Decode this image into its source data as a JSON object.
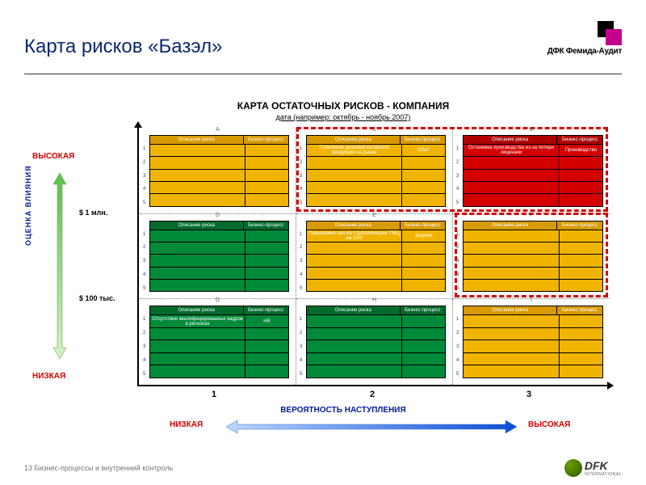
{
  "title": "Карта рисков «Базэл»",
  "logo_brand": "ДФК Фемида-Аудит",
  "chart_title": "КАРТА ОСТАТОЧНЫХ РИСКОВ - КОМПАНИЯ",
  "chart_subtitle": "дата (например: октябрь - ноябрь 2007)",
  "footer": "13 Бизнес-процессы и внутренний контроль",
  "dfk_text": "DFK",
  "dfk_sub": "INTERNATIONAL",
  "y_axis": {
    "label": "ОЦЕНКА ВЛИЯНИЯ",
    "high": "ВЫСОКАЯ",
    "low": "НИЗКАЯ",
    "tick1": "$ 1 млн.",
    "tick2": "$ 100 тыс."
  },
  "x_axis": {
    "label": "ВЕРОЯТНОСТЬ НАСТУПЛЕНИЯ",
    "low": "НИЗКАЯ",
    "high": "ВЫСОКАЯ",
    "n1": "1",
    "n2": "2",
    "n3": "3"
  },
  "card_head1": "Описание риска",
  "card_head2": "Бизнес-процесс",
  "row_nums": [
    "1",
    "2",
    "3",
    "4",
    "5"
  ],
  "colors": {
    "green": "#008a3a",
    "green_dark": "#006b2d",
    "yellow": "#f0b400",
    "yellow_dark": "#d89a00",
    "red": "#d40000",
    "red_dark": "#b00000"
  },
  "cells": [
    {
      "id": "A",
      "color": "yellow",
      "rows": [
        null,
        null,
        null,
        null,
        null
      ]
    },
    {
      "id": "B",
      "color": "yellow",
      "rows": [
        {
          "desc": "Появление дешевой китайской продукции на рынке",
          "bp": "Сбыт"
        },
        null,
        null,
        null,
        null
      ]
    },
    {
      "id": "C",
      "color": "red",
      "rows": [
        {
          "desc": "Остановка производства из-за потери лицензии",
          "bp": "Производство"
        },
        null,
        null,
        null,
        null
      ]
    },
    {
      "id": "D",
      "color": "green",
      "rows": [
        null,
        null,
        null,
        null,
        null
      ]
    },
    {
      "id": "E",
      "color": "yellow",
      "rows": [
        {
          "desc": "Повышение цен на стратегические ТМЦ на 10%",
          "bp": "Закупки"
        },
        null,
        null,
        null,
        null
      ]
    },
    {
      "id": "F",
      "color": "yellow",
      "rows": [
        null,
        null,
        null,
        null,
        null
      ]
    },
    {
      "id": "G",
      "color": "green",
      "rows": [
        {
          "desc": "Отсутствие квалифицированных кадров в регионах",
          "bp": "HR"
        },
        null,
        null,
        null,
        null
      ]
    },
    {
      "id": "H",
      "color": "green",
      "rows": [
        null,
        null,
        null,
        null,
        null
      ]
    },
    {
      "id": "I",
      "color": "yellow",
      "rows": [
        null,
        null,
        null,
        null,
        null
      ]
    }
  ]
}
